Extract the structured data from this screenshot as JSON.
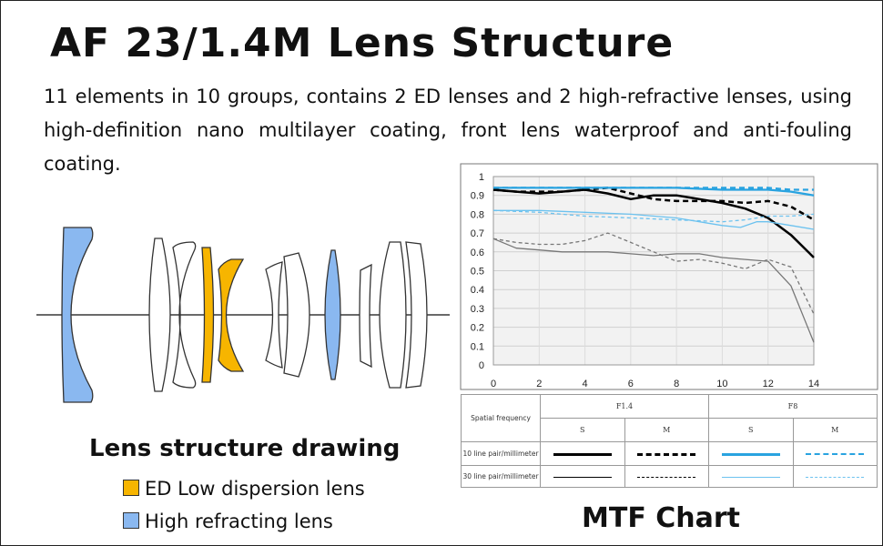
{
  "title": "AF 23/1.4M Lens Structure",
  "description": "11 elements in 10 groups, contains 2 ED lenses and 2 high-refractive lenses, using high-definition nano multilayer coating, front lens waterproof and anti-fouling coating.",
  "lens_drawing": {
    "title": "Lens structure drawing",
    "legend": [
      {
        "label": "ED Low dispersion lens",
        "color": "#f7b500"
      },
      {
        "label": "High refracting lens",
        "color": "#8ab8f0"
      }
    ]
  },
  "mtf": {
    "title": "MTF Chart",
    "legend_table": {
      "header_left": "Spatial frequency",
      "aperture_1": "F1.4",
      "aperture_2": "F8",
      "s_label": "S",
      "m_label": "M",
      "row_10": "10 line pair/millimeter",
      "row_30": "30 line pair/millimeter"
    }
  },
  "chart_data": {
    "type": "line",
    "title": "",
    "xlabel": "",
    "ylabel": "",
    "xlim": [
      0,
      14
    ],
    "ylim": [
      0,
      1
    ],
    "xticks": [
      0,
      2,
      4,
      6,
      8,
      10,
      12,
      14
    ],
    "yticks": [
      0,
      0.1,
      0.2,
      0.3,
      0.4,
      0.5,
      0.6,
      0.7,
      0.8,
      0.9,
      1
    ],
    "grid": true,
    "colors": {
      "f14": "#000000",
      "f8": "#29a3e0"
    },
    "series": [
      {
        "name": "F1.4 S 10 line pair/millimeter",
        "color": "#000000",
        "dash": "solid",
        "width": 2.5,
        "points": [
          [
            0,
            0.93
          ],
          [
            1,
            0.92
          ],
          [
            2,
            0.91
          ],
          [
            3,
            0.92
          ],
          [
            4,
            0.93
          ],
          [
            5,
            0.91
          ],
          [
            6,
            0.88
          ],
          [
            7,
            0.9
          ],
          [
            8,
            0.9
          ],
          [
            9,
            0.88
          ],
          [
            10,
            0.86
          ],
          [
            11,
            0.83
          ],
          [
            12,
            0.78
          ],
          [
            13,
            0.69
          ],
          [
            14,
            0.57
          ]
        ]
      },
      {
        "name": "F1.4 M 10 line pair/millimeter",
        "color": "#000000",
        "dash": "6,4",
        "width": 2.5,
        "points": [
          [
            0,
            0.93
          ],
          [
            1,
            0.92
          ],
          [
            2,
            0.92
          ],
          [
            3,
            0.92
          ],
          [
            4,
            0.93
          ],
          [
            5,
            0.94
          ],
          [
            6,
            0.91
          ],
          [
            7,
            0.88
          ],
          [
            8,
            0.87
          ],
          [
            9,
            0.87
          ],
          [
            10,
            0.87
          ],
          [
            11,
            0.86
          ],
          [
            12,
            0.87
          ],
          [
            13,
            0.84
          ],
          [
            14,
            0.77
          ]
        ]
      },
      {
        "name": "F1.4 S 30 line pair/millimeter",
        "color": "#777777",
        "dash": "solid",
        "width": 1.3,
        "points": [
          [
            0,
            0.67
          ],
          [
            1,
            0.62
          ],
          [
            2,
            0.61
          ],
          [
            3,
            0.6
          ],
          [
            4,
            0.6
          ],
          [
            5,
            0.6
          ],
          [
            6,
            0.59
          ],
          [
            7,
            0.58
          ],
          [
            8,
            0.59
          ],
          [
            9,
            0.59
          ],
          [
            10,
            0.57
          ],
          [
            11,
            0.56
          ],
          [
            12,
            0.55
          ],
          [
            13,
            0.42
          ],
          [
            14,
            0.12
          ]
        ]
      },
      {
        "name": "F1.4 M 30 line pair/millimeter",
        "color": "#777777",
        "dash": "4,3",
        "width": 1.3,
        "points": [
          [
            0,
            0.67
          ],
          [
            1,
            0.65
          ],
          [
            2,
            0.64
          ],
          [
            3,
            0.64
          ],
          [
            4,
            0.66
          ],
          [
            5,
            0.7
          ],
          [
            6,
            0.65
          ],
          [
            7,
            0.6
          ],
          [
            8,
            0.55
          ],
          [
            9,
            0.56
          ],
          [
            10,
            0.54
          ],
          [
            11,
            0.51
          ],
          [
            12,
            0.56
          ],
          [
            13,
            0.52
          ],
          [
            14,
            0.27
          ]
        ]
      },
      {
        "name": "F8 S 10 line pair/millimeter",
        "color": "#29a3e0",
        "dash": "solid",
        "width": 2.3,
        "points": [
          [
            0,
            0.94
          ],
          [
            2,
            0.94
          ],
          [
            4,
            0.94
          ],
          [
            6,
            0.94
          ],
          [
            8,
            0.94
          ],
          [
            10,
            0.93
          ],
          [
            12,
            0.93
          ],
          [
            13,
            0.92
          ],
          [
            14,
            0.9
          ]
        ]
      },
      {
        "name": "F8 M 10 line pair/millimeter",
        "color": "#29a3e0",
        "dash": "6,4",
        "width": 2.3,
        "points": [
          [
            0,
            0.94
          ],
          [
            2,
            0.94
          ],
          [
            4,
            0.94
          ],
          [
            6,
            0.94
          ],
          [
            8,
            0.94
          ],
          [
            10,
            0.94
          ],
          [
            12,
            0.94
          ],
          [
            13,
            0.93
          ],
          [
            14,
            0.93
          ]
        ]
      },
      {
        "name": "F8 S 30 line pair/millimeter",
        "color": "#6cc2ef",
        "dash": "solid",
        "width": 1.3,
        "points": [
          [
            0,
            0.82
          ],
          [
            2,
            0.82
          ],
          [
            4,
            0.81
          ],
          [
            6,
            0.8
          ],
          [
            8,
            0.78
          ],
          [
            9,
            0.76
          ],
          [
            10,
            0.74
          ],
          [
            10.8,
            0.73
          ],
          [
            11.5,
            0.76
          ],
          [
            12,
            0.76
          ],
          [
            13,
            0.74
          ],
          [
            14,
            0.72
          ]
        ]
      },
      {
        "name": "F8 M 30 line pair/millimeter",
        "color": "#6cc2ef",
        "dash": "4,3",
        "width": 1.3,
        "points": [
          [
            0,
            0.82
          ],
          [
            2,
            0.81
          ],
          [
            4,
            0.79
          ],
          [
            6,
            0.78
          ],
          [
            8,
            0.77
          ],
          [
            10,
            0.76
          ],
          [
            11,
            0.77
          ],
          [
            12,
            0.79
          ],
          [
            13,
            0.79
          ],
          [
            14,
            0.8
          ]
        ]
      }
    ]
  }
}
